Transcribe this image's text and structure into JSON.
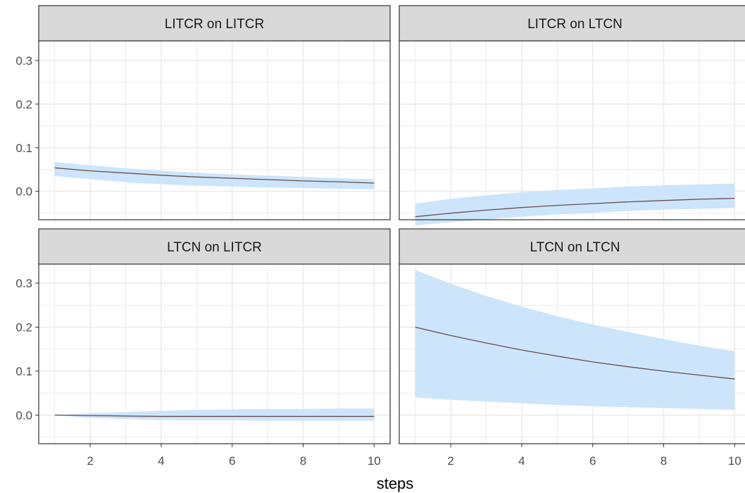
{
  "chart_data": {
    "type": "line",
    "facet_layout": "2x2",
    "xlabel": "steps",
    "ylabel": "",
    "xlim": [
      0.55,
      10.45
    ],
    "ylim": [
      -0.065,
      0.345
    ],
    "x_ticks": [
      2,
      4,
      6,
      8,
      10
    ],
    "y_ticks": [
      0.0,
      0.1,
      0.2,
      0.3
    ],
    "x_tick_labels": [
      "2",
      "4",
      "6",
      "8",
      "10"
    ],
    "y_tick_labels": [
      "0.0",
      "0.1",
      "0.2",
      "0.3"
    ],
    "grid": true,
    "legend": "none",
    "colors": {
      "line": "#6b4c4c",
      "band": "#cce5fa",
      "strip_bg": "#d9d9d9",
      "grid": "#ebebeb",
      "border": "#333333"
    },
    "panels": [
      {
        "title": "LITCR on LITCR",
        "x": [
          1,
          2,
          3,
          4,
          5,
          6,
          7,
          8,
          9,
          10
        ],
        "y": [
          0.054,
          0.047,
          0.042,
          0.037,
          0.033,
          0.03,
          0.027,
          0.024,
          0.022,
          0.019
        ],
        "lower": [
          0.035,
          0.028,
          0.021,
          0.016,
          0.013,
          0.011,
          0.009,
          0.008,
          0.006,
          0.005
        ],
        "upper": [
          0.067,
          0.06,
          0.053,
          0.047,
          0.043,
          0.039,
          0.036,
          0.033,
          0.03,
          0.028
        ]
      },
      {
        "title": "LITCR on LTCN",
        "x": [
          1,
          2,
          3,
          4,
          5,
          6,
          7,
          8,
          9,
          10
        ],
        "y": [
          -0.058,
          -0.05,
          -0.043,
          -0.037,
          -0.032,
          -0.028,
          -0.024,
          -0.021,
          -0.018,
          -0.016
        ],
        "lower": [
          -0.078,
          -0.071,
          -0.064,
          -0.058,
          -0.053,
          -0.049,
          -0.045,
          -0.042,
          -0.04,
          -0.038
        ],
        "upper": [
          -0.028,
          -0.017,
          -0.009,
          -0.002,
          0.003,
          0.007,
          0.011,
          0.014,
          0.016,
          0.018
        ]
      },
      {
        "title": "LTCN on LITCR",
        "x": [
          1,
          2,
          3,
          4,
          5,
          6,
          7,
          8,
          9,
          10
        ],
        "y": [
          0.0,
          -0.001,
          -0.002,
          -0.003,
          -0.003,
          -0.003,
          -0.003,
          -0.003,
          -0.003,
          -0.003
        ],
        "lower": [
          0.0,
          -0.006,
          -0.009,
          -0.011,
          -0.012,
          -0.012,
          -0.013,
          -0.013,
          -0.013,
          -0.013
        ],
        "upper": [
          0.0,
          0.004,
          0.007,
          0.01,
          0.012,
          0.013,
          0.014,
          0.014,
          0.015,
          0.015
        ]
      },
      {
        "title": "LTCN on LTCN",
        "x": [
          1,
          2,
          3,
          4,
          5,
          6,
          7,
          8,
          9,
          10
        ],
        "y": [
          0.2,
          0.181,
          0.164,
          0.148,
          0.134,
          0.121,
          0.11,
          0.1,
          0.091,
          0.082
        ],
        "lower": [
          0.04,
          0.035,
          0.031,
          0.027,
          0.023,
          0.02,
          0.018,
          0.016,
          0.014,
          0.012
        ],
        "upper": [
          0.33,
          0.299,
          0.271,
          0.247,
          0.225,
          0.206,
          0.189,
          0.173,
          0.158,
          0.145
        ]
      }
    ]
  }
}
